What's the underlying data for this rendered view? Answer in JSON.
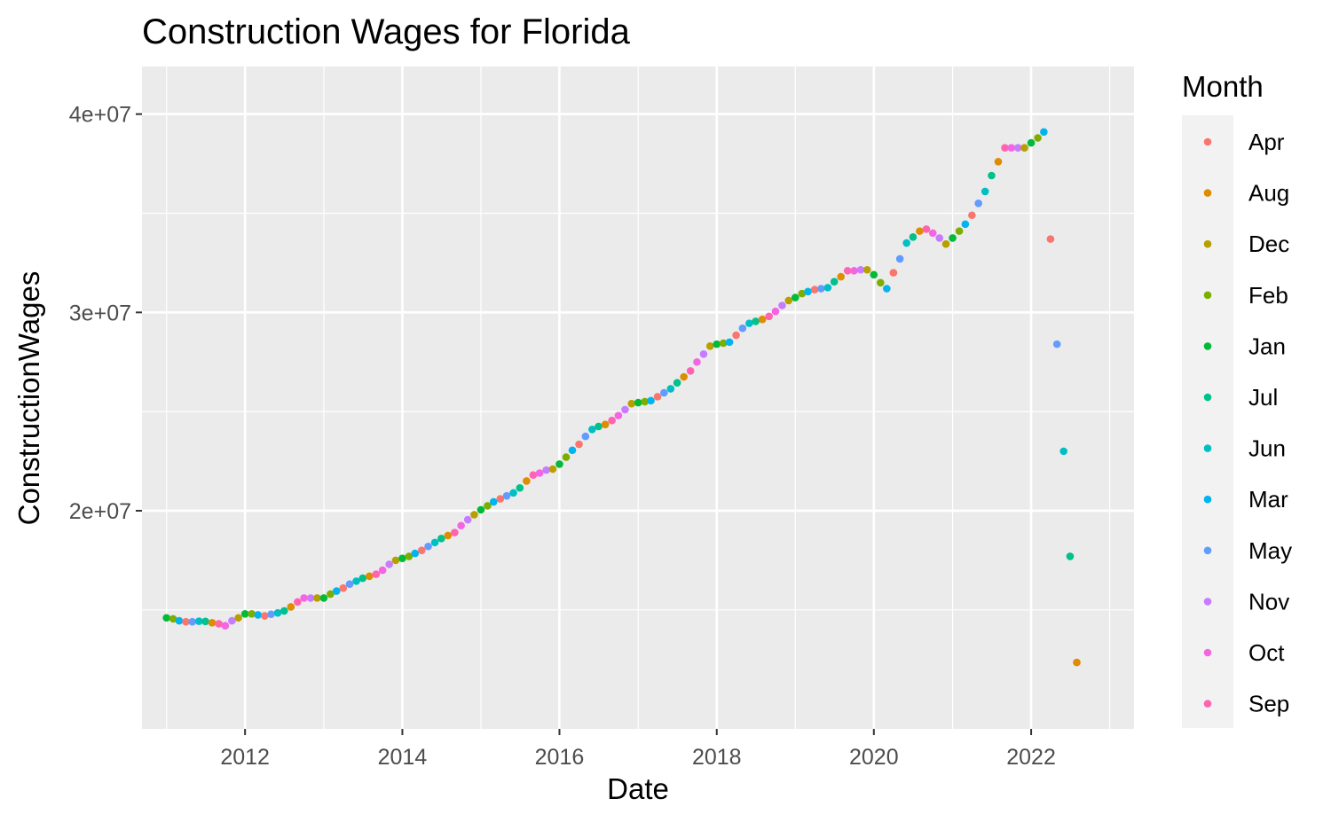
{
  "chart_data": {
    "type": "scatter",
    "title": "Construction Wages for Florida",
    "xlabel": "Date",
    "ylabel": "ConstructionWages",
    "xlim": [
      "2010-09-09",
      "2023-04-24"
    ],
    "ylim": [
      9000000,
      42400000
    ],
    "x_ticks": [
      "2012",
      "2014",
      "2016",
      "2018",
      "2020",
      "2022"
    ],
    "y_ticks": [
      {
        "value": 40000000,
        "label": "4e+07"
      },
      {
        "value": 30000000,
        "label": "3e+07"
      },
      {
        "value": 20000000,
        "label": "2e+07"
      }
    ],
    "grid": true,
    "legend": {
      "title": "Month",
      "position": "right",
      "entries": [
        {
          "name": "Apr",
          "color": "#F8766D"
        },
        {
          "name": "Aug",
          "color": "#DE8C00"
        },
        {
          "name": "Dec",
          "color": "#B79F00"
        },
        {
          "name": "Feb",
          "color": "#7CAE00"
        },
        {
          "name": "Jan",
          "color": "#00BA38"
        },
        {
          "name": "Jul",
          "color": "#00C08B"
        },
        {
          "name": "Jun",
          "color": "#00BFC4"
        },
        {
          "name": "Mar",
          "color": "#00B4F0"
        },
        {
          "name": "May",
          "color": "#619CFF"
        },
        {
          "name": "Nov",
          "color": "#C77CFF"
        },
        {
          "name": "Oct",
          "color": "#F564E3"
        },
        {
          "name": "Sep",
          "color": "#FF64B0"
        }
      ]
    },
    "start_year": 2011,
    "values": [
      14600000,
      14550000,
      14450000,
      14400000,
      14400000,
      14430000,
      14420000,
      14350000,
      14300000,
      14200000,
      14450000,
      14600000,
      14800000,
      14800000,
      14750000,
      14700000,
      14780000,
      14850000,
      14950000,
      15150000,
      15400000,
      15600000,
      15600000,
      15600000,
      15600000,
      15800000,
      15950000,
      16100000,
      16300000,
      16450000,
      16600000,
      16700000,
      16800000,
      17000000,
      17300000,
      17500000,
      17600000,
      17700000,
      17850000,
      18000000,
      18200000,
      18400000,
      18600000,
      18750000,
      18900000,
      19250000,
      19550000,
      19800000,
      20050000,
      20250000,
      20450000,
      20600000,
      20750000,
      20900000,
      21150000,
      21500000,
      21800000,
      21900000,
      22050000,
      22100000,
      22350000,
      22700000,
      23050000,
      23350000,
      23750000,
      24100000,
      24250000,
      24350000,
      24550000,
      24800000,
      25100000,
      25400000,
      25450000,
      25500000,
      25550000,
      25750000,
      25950000,
      26150000,
      26450000,
      26750000,
      27050000,
      27500000,
      27900000,
      28300000,
      28400000,
      28450000,
      28500000,
      28850000,
      29200000,
      29450000,
      29550000,
      29650000,
      29800000,
      30050000,
      30350000,
      30600000,
      30750000,
      30950000,
      31050000,
      31150000,
      31200000,
      31250000,
      31550000,
      31800000,
      32100000,
      32100000,
      32150000,
      32150000,
      31900000,
      31500000,
      31200000,
      32000000,
      32700000,
      33500000,
      33800000,
      34100000,
      34200000,
      34000000,
      33750000,
      33450000,
      33750000,
      34100000,
      34450000,
      34900000,
      35500000,
      36100000,
      36900000,
      37600000,
      38300000,
      38300000,
      38300000,
      38300000,
      38550000,
      38800000,
      39100000,
      33700000,
      28400000,
      23000000,
      17700000,
      12350000
    ]
  }
}
